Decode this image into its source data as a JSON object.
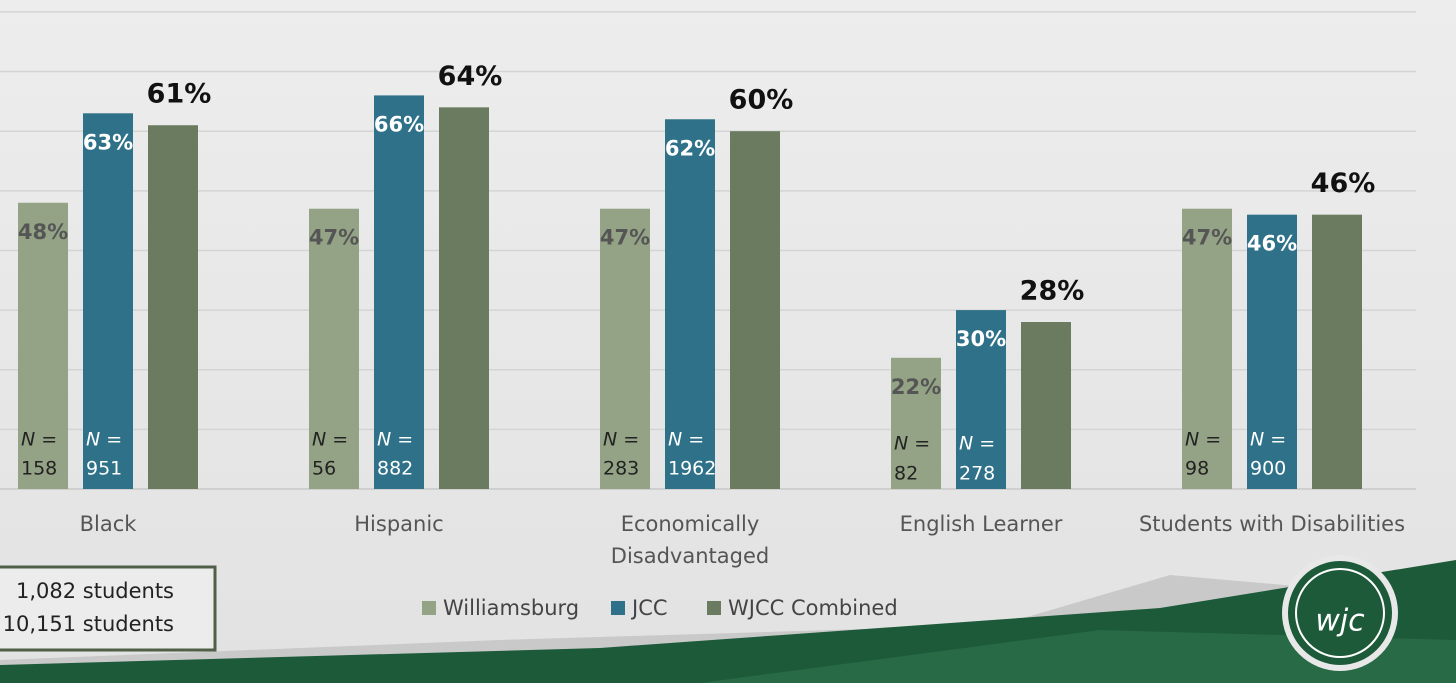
{
  "chart_data": {
    "type": "bar",
    "categories": [
      "Black",
      "Hispanic",
      "Economically\nDisadvantaged",
      "English Learner",
      "Students with Disabilities"
    ],
    "series": [
      {
        "name": "Williamsburg",
        "color": "#94a386",
        "values": [
          48,
          47,
          47,
          22,
          47
        ],
        "value_labels": [
          "48%",
          "47%",
          "47%",
          "22%",
          "47%"
        ],
        "n": [
          158,
          56,
          283,
          82,
          98
        ]
      },
      {
        "name": "JCC",
        "color": "#2e7189",
        "values": [
          63,
          66,
          62,
          30,
          46
        ],
        "value_labels": [
          "63%",
          "66%",
          "62%",
          "30%",
          "46%"
        ],
        "n": [
          951,
          882,
          1962,
          278,
          900
        ]
      },
      {
        "name": "WJCC Combined",
        "color": "#6a7b5f",
        "values": [
          61,
          64,
          60,
          28,
          46
        ],
        "value_labels": [
          "61%",
          "64%",
          "60%",
          "28%",
          "46%"
        ]
      }
    ],
    "n_label": "N =",
    "ylim": [
      0,
      82
    ],
    "yticks": [
      0,
      10,
      20,
      30,
      40,
      50,
      60,
      70,
      80
    ],
    "grid": true,
    "annotations": [
      "1,082 students",
      "10,151 students"
    ],
    "logo_text": "wjc"
  }
}
